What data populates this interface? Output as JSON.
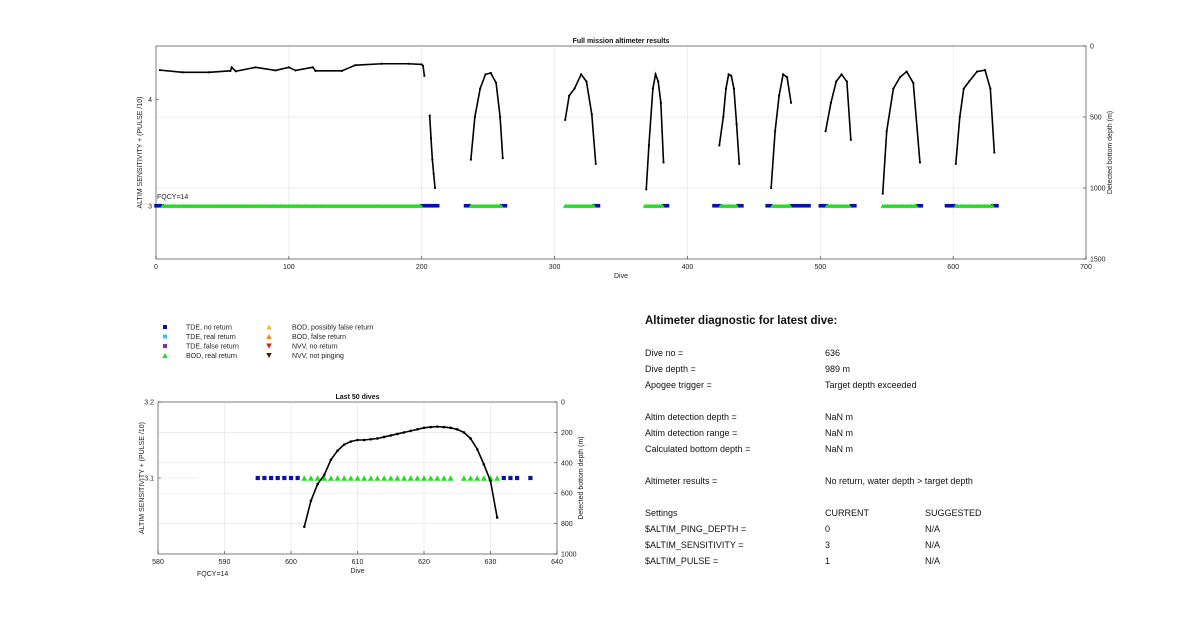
{
  "chart_data": [
    {
      "id": "full",
      "type": "scatter",
      "title": "Full mission altimeter results",
      "xlabel": "Dive",
      "ylabel_left": "ALTIM SENSITIVITY + (PULSE /10)",
      "ylabel_right": "Detected bottom depth (m)",
      "xlim": [
        0,
        700
      ],
      "ylim_left": [
        2.5,
        4.5
      ],
      "ylim_right": [
        1500,
        0
      ],
      "xticks": [
        0,
        100,
        200,
        300,
        400,
        500,
        600,
        700
      ],
      "yticks_left": [
        3,
        4
      ],
      "yticks_right": [
        0,
        500,
        1000,
        1500
      ],
      "grid": true,
      "annotation": "FQCY=14",
      "bod_real_segments": [
        [
          5,
          200
        ],
        [
          237,
          260
        ],
        [
          308,
          330
        ],
        [
          368,
          382
        ],
        [
          425,
          438
        ],
        [
          464,
          478
        ],
        [
          505,
          523
        ],
        [
          547,
          573
        ],
        [
          602,
          630
        ]
      ],
      "tde_no_return_segments": [
        [
          0,
          5
        ],
        [
          200,
          212
        ],
        [
          233,
          237
        ],
        [
          260,
          264
        ],
        [
          330,
          334
        ],
        [
          382,
          386
        ],
        [
          420,
          425
        ],
        [
          438,
          442
        ],
        [
          460,
          464
        ],
        [
          478,
          492
        ],
        [
          500,
          505
        ],
        [
          523,
          527
        ],
        [
          573,
          577
        ],
        [
          595,
          602
        ],
        [
          630,
          634
        ]
      ],
      "bottom_depth_lines": [
        {
          "x": [
            3,
            20,
            40,
            56,
            57,
            60,
            75,
            90,
            100,
            105,
            118,
            120,
            140,
            150,
            170,
            190,
            200,
            201,
            202
          ],
          "y": [
            170,
            185,
            185,
            175,
            150,
            178,
            150,
            172,
            150,
            172,
            150,
            175,
            175,
            135,
            125,
            125,
            130,
            140,
            210
          ]
        },
        {
          "x": [
            206,
            207,
            208,
            209,
            210
          ],
          "y": [
            490,
            650,
            800,
            900,
            1000
          ]
        },
        {
          "x": [
            237,
            240,
            244,
            248,
            252,
            256,
            259,
            261
          ],
          "y": [
            800,
            500,
            300,
            200,
            190,
            260,
            500,
            790
          ]
        },
        {
          "x": [
            308,
            311,
            315,
            320,
            324,
            328,
            331
          ],
          "y": [
            520,
            350,
            300,
            200,
            250,
            480,
            830
          ]
        },
        {
          "x": [
            369,
            371,
            374,
            376,
            378,
            380,
            382
          ],
          "y": [
            1010,
            700,
            300,
            200,
            250,
            400,
            820
          ]
        },
        {
          "x": [
            424,
            427,
            429,
            431,
            433,
            435,
            437,
            439
          ],
          "y": [
            700,
            500,
            300,
            200,
            210,
            300,
            550,
            830
          ]
        },
        {
          "x": [
            463,
            466,
            469,
            472,
            475,
            478
          ],
          "y": [
            1000,
            600,
            350,
            200,
            220,
            400
          ]
        },
        {
          "x": [
            504,
            508,
            512,
            516,
            520,
            523
          ],
          "y": [
            600,
            400,
            250,
            200,
            250,
            660
          ]
        },
        {
          "x": [
            547,
            550,
            555,
            560,
            565,
            570,
            575
          ],
          "y": [
            1040,
            600,
            300,
            220,
            180,
            260,
            820
          ]
        },
        {
          "x": [
            602,
            605,
            608,
            612,
            618,
            624,
            628,
            631
          ],
          "y": [
            830,
            500,
            300,
            250,
            180,
            170,
            300,
            750
          ]
        }
      ]
    },
    {
      "id": "last50",
      "type": "scatter",
      "title": "Last 50 dives",
      "xlabel": "Dive",
      "ylabel_left": "ALTIM SENSITIVITY + (PULSE /10)",
      "ylabel_right": "Detected bottom depth (m)",
      "xlim": [
        580,
        640
      ],
      "ylim_left": [
        3.0,
        3.2
      ],
      "ylim_right": [
        1000,
        0
      ],
      "xticks": [
        580,
        590,
        600,
        610,
        620,
        630,
        640
      ],
      "yticks_left": [
        3.1,
        3.2
      ],
      "yticks_right": [
        0,
        200,
        400,
        600,
        800,
        1000
      ],
      "grid": true,
      "annotation": "FQCY=14",
      "tde_no_return": [
        595,
        596,
        597,
        598,
        599,
        600,
        601,
        632,
        633,
        634,
        636
      ],
      "bod_real": [
        602,
        603,
        604,
        605,
        606,
        607,
        608,
        609,
        610,
        611,
        612,
        613,
        614,
        615,
        616,
        617,
        618,
        619,
        620,
        621,
        622,
        623,
        624,
        626,
        627,
        628,
        629,
        630,
        631
      ],
      "bottom_depth": {
        "x": [
          602,
          603,
          604,
          605,
          606,
          607,
          608,
          609,
          610,
          611,
          612,
          613,
          614,
          615,
          616,
          617,
          618,
          619,
          620,
          621,
          622,
          623,
          624,
          625,
          626,
          627,
          628,
          629,
          630,
          631
        ],
        "y": [
          820,
          650,
          540,
          480,
          380,
          320,
          280,
          260,
          250,
          250,
          245,
          240,
          230,
          220,
          210,
          200,
          190,
          180,
          170,
          165,
          162,
          165,
          170,
          180,
          200,
          240,
          310,
          410,
          520,
          760
        ]
      }
    }
  ],
  "legend": {
    "col1": [
      "TDE, no return",
      "TDE, real return",
      "TDE, false return",
      "BOD, real return"
    ],
    "col2": [
      "BOD, possibly false return",
      "BOD, false return",
      "NVV, no return",
      "NVV, not pinging"
    ],
    "colors": {
      "tde_no_return": "#0a10a8",
      "tde_real": "#3ac8e0",
      "tde_false": "#7a30b0",
      "bod_real": "#22dd22",
      "bod_possibly_false": "#f0c020",
      "bod_false": "#f08a20",
      "nvv_no_return": "#d02010",
      "nvv_not_pinging": "#601010"
    }
  },
  "diagnostic": {
    "title": "Altimeter diagnostic for latest dive:",
    "rows": [
      {
        "label": "Dive no =",
        "value": "636"
      },
      {
        "label": "Dive depth =",
        "value": "989 m"
      },
      {
        "label": "Apogee trigger =",
        "value": "Target depth exceeded"
      },
      {
        "label": "Altim detection depth =",
        "value": "NaN m"
      },
      {
        "label": "Altim detection range =",
        "value": "NaN m"
      },
      {
        "label": "Calculated bottom depth =",
        "value": "NaN m"
      },
      {
        "label": "Altimeter results =",
        "value": "No return, water depth > target depth"
      }
    ],
    "settings_header": {
      "label": "Settings",
      "current": "CURRENT",
      "suggested": "SUGGESTED"
    },
    "settings": [
      {
        "label": "$ALTIM_PING_DEPTH =",
        "current": "0",
        "suggested": "N/A"
      },
      {
        "label": "$ALTIM_SENSITIVITY =",
        "current": "3",
        "suggested": "N/A"
      },
      {
        "label": "$ALTIM_PULSE =",
        "current": "1",
        "suggested": "N/A"
      }
    ]
  }
}
